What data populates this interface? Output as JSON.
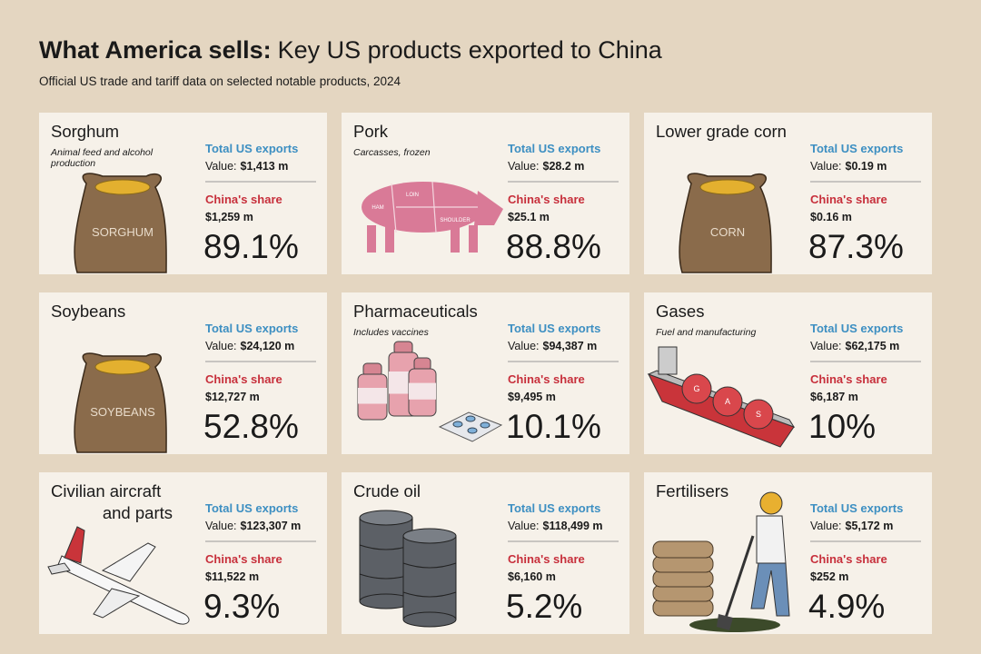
{
  "header": {
    "title_bold": "What America sells:",
    "title_rest": "Key US products exported to China",
    "subtitle": "Official US trade and tariff data on selected notable products, 2024"
  },
  "cards": [
    {
      "name_lines": [
        "Sorghum"
      ],
      "note_lines": [
        "Animal feed and alcohol",
        "production"
      ],
      "exports_label": "Total US exports",
      "value_prefix": "Value:",
      "value": "$1,413 m",
      "share_label": "China's share",
      "share_value": "$1,259 m",
      "percent": "89.1%",
      "illustration_labels": [
        "SORGHUM"
      ]
    },
    {
      "name_lines": [
        "Pork"
      ],
      "note_lines": [
        "Carcasses, frozen"
      ],
      "exports_label": "Total US exports",
      "value_prefix": "Value:",
      "value": "$28.2 m",
      "share_label": "China's share",
      "share_value": "$25.1 m",
      "percent": "88.8%",
      "illustration_labels": [
        "HAM",
        "LOIN",
        "SHOULDER"
      ]
    },
    {
      "name_lines": [
        "Lower grade corn"
      ],
      "note_lines": [],
      "exports_label": "Total US exports",
      "value_prefix": "Value:",
      "value": "$0.19 m",
      "share_label": "China's share",
      "share_value": "$0.16 m",
      "percent": "87.3%",
      "illustration_labels": [
        "CORN"
      ]
    },
    {
      "name_lines": [
        "Soybeans"
      ],
      "note_lines": [],
      "exports_label": "Total US exports",
      "value_prefix": "Value:",
      "value": "$24,120 m",
      "share_label": "China's share",
      "share_value": "$12,727 m",
      "percent": "52.8%",
      "illustration_labels": [
        "SOYBEANS"
      ]
    },
    {
      "name_lines": [
        "Pharmaceuticals"
      ],
      "note_lines": [
        "Includes vaccines"
      ],
      "exports_label": "Total US exports",
      "value_prefix": "Value:",
      "value": "$94,387 m",
      "share_label": "China's share",
      "share_value": "$9,495 m",
      "percent": "10.1%",
      "illustration_labels": []
    },
    {
      "name_lines": [
        "Gases"
      ],
      "note_lines": [
        "Fuel and manufacturing"
      ],
      "exports_label": "Total US exports",
      "value_prefix": "Value:",
      "value": "$62,175 m",
      "share_label": "China's share",
      "share_value": "$6,187 m",
      "percent": "10%",
      "illustration_labels": [
        "G",
        "A",
        "S"
      ]
    },
    {
      "name_lines": [
        "Civilian aircraft",
        "and parts"
      ],
      "note_lines": [],
      "exports_label": "Total US exports",
      "value_prefix": "Value:",
      "value": "$123,307 m",
      "share_label": "China's share",
      "share_value": "$11,522 m",
      "percent": "9.3%",
      "illustration_labels": []
    },
    {
      "name_lines": [
        "Crude oil"
      ],
      "note_lines": [],
      "exports_label": "Total US exports",
      "value_prefix": "Value:",
      "value": "$118,499 m",
      "share_label": "China's share",
      "share_value": "$6,160 m",
      "percent": "5.2%",
      "illustration_labels": []
    },
    {
      "name_lines": [
        "Fertilisers"
      ],
      "note_lines": [],
      "exports_label": "Total US exports",
      "value_prefix": "Value:",
      "value": "$5,172 m",
      "share_label": "China's share",
      "share_value": "$252 m",
      "percent": "4.9%",
      "illustration_labels": []
    }
  ]
}
